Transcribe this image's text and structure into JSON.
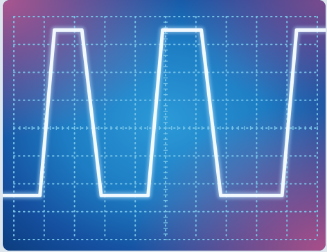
{
  "scope": {
    "colors": {
      "screen_base": "#0f4d97",
      "screen_center": "#1d8bd0",
      "screen_edge_magenta": "#a54a86",
      "grid": "#79c6e8",
      "trace": "#f4fbff",
      "trace_glow": "#bfe8ff"
    },
    "grid": {
      "divisions_x": 10,
      "divisions_y": 8
    },
    "waveform": {
      "type": "trapezoidal pulse train",
      "low_level": 0.22,
      "high_level": 0.88,
      "samples": [
        [
          0.0,
          0.22
        ],
        [
          0.115,
          0.22
        ],
        [
          0.16,
          0.88
        ],
        [
          0.245,
          0.88
        ],
        [
          0.305,
          0.22
        ],
        [
          0.45,
          0.22
        ],
        [
          0.495,
          0.88
        ],
        [
          0.615,
          0.88
        ],
        [
          0.675,
          0.22
        ],
        [
          0.865,
          0.22
        ],
        [
          0.91,
          0.88
        ],
        [
          1.0,
          0.88
        ]
      ]
    }
  }
}
